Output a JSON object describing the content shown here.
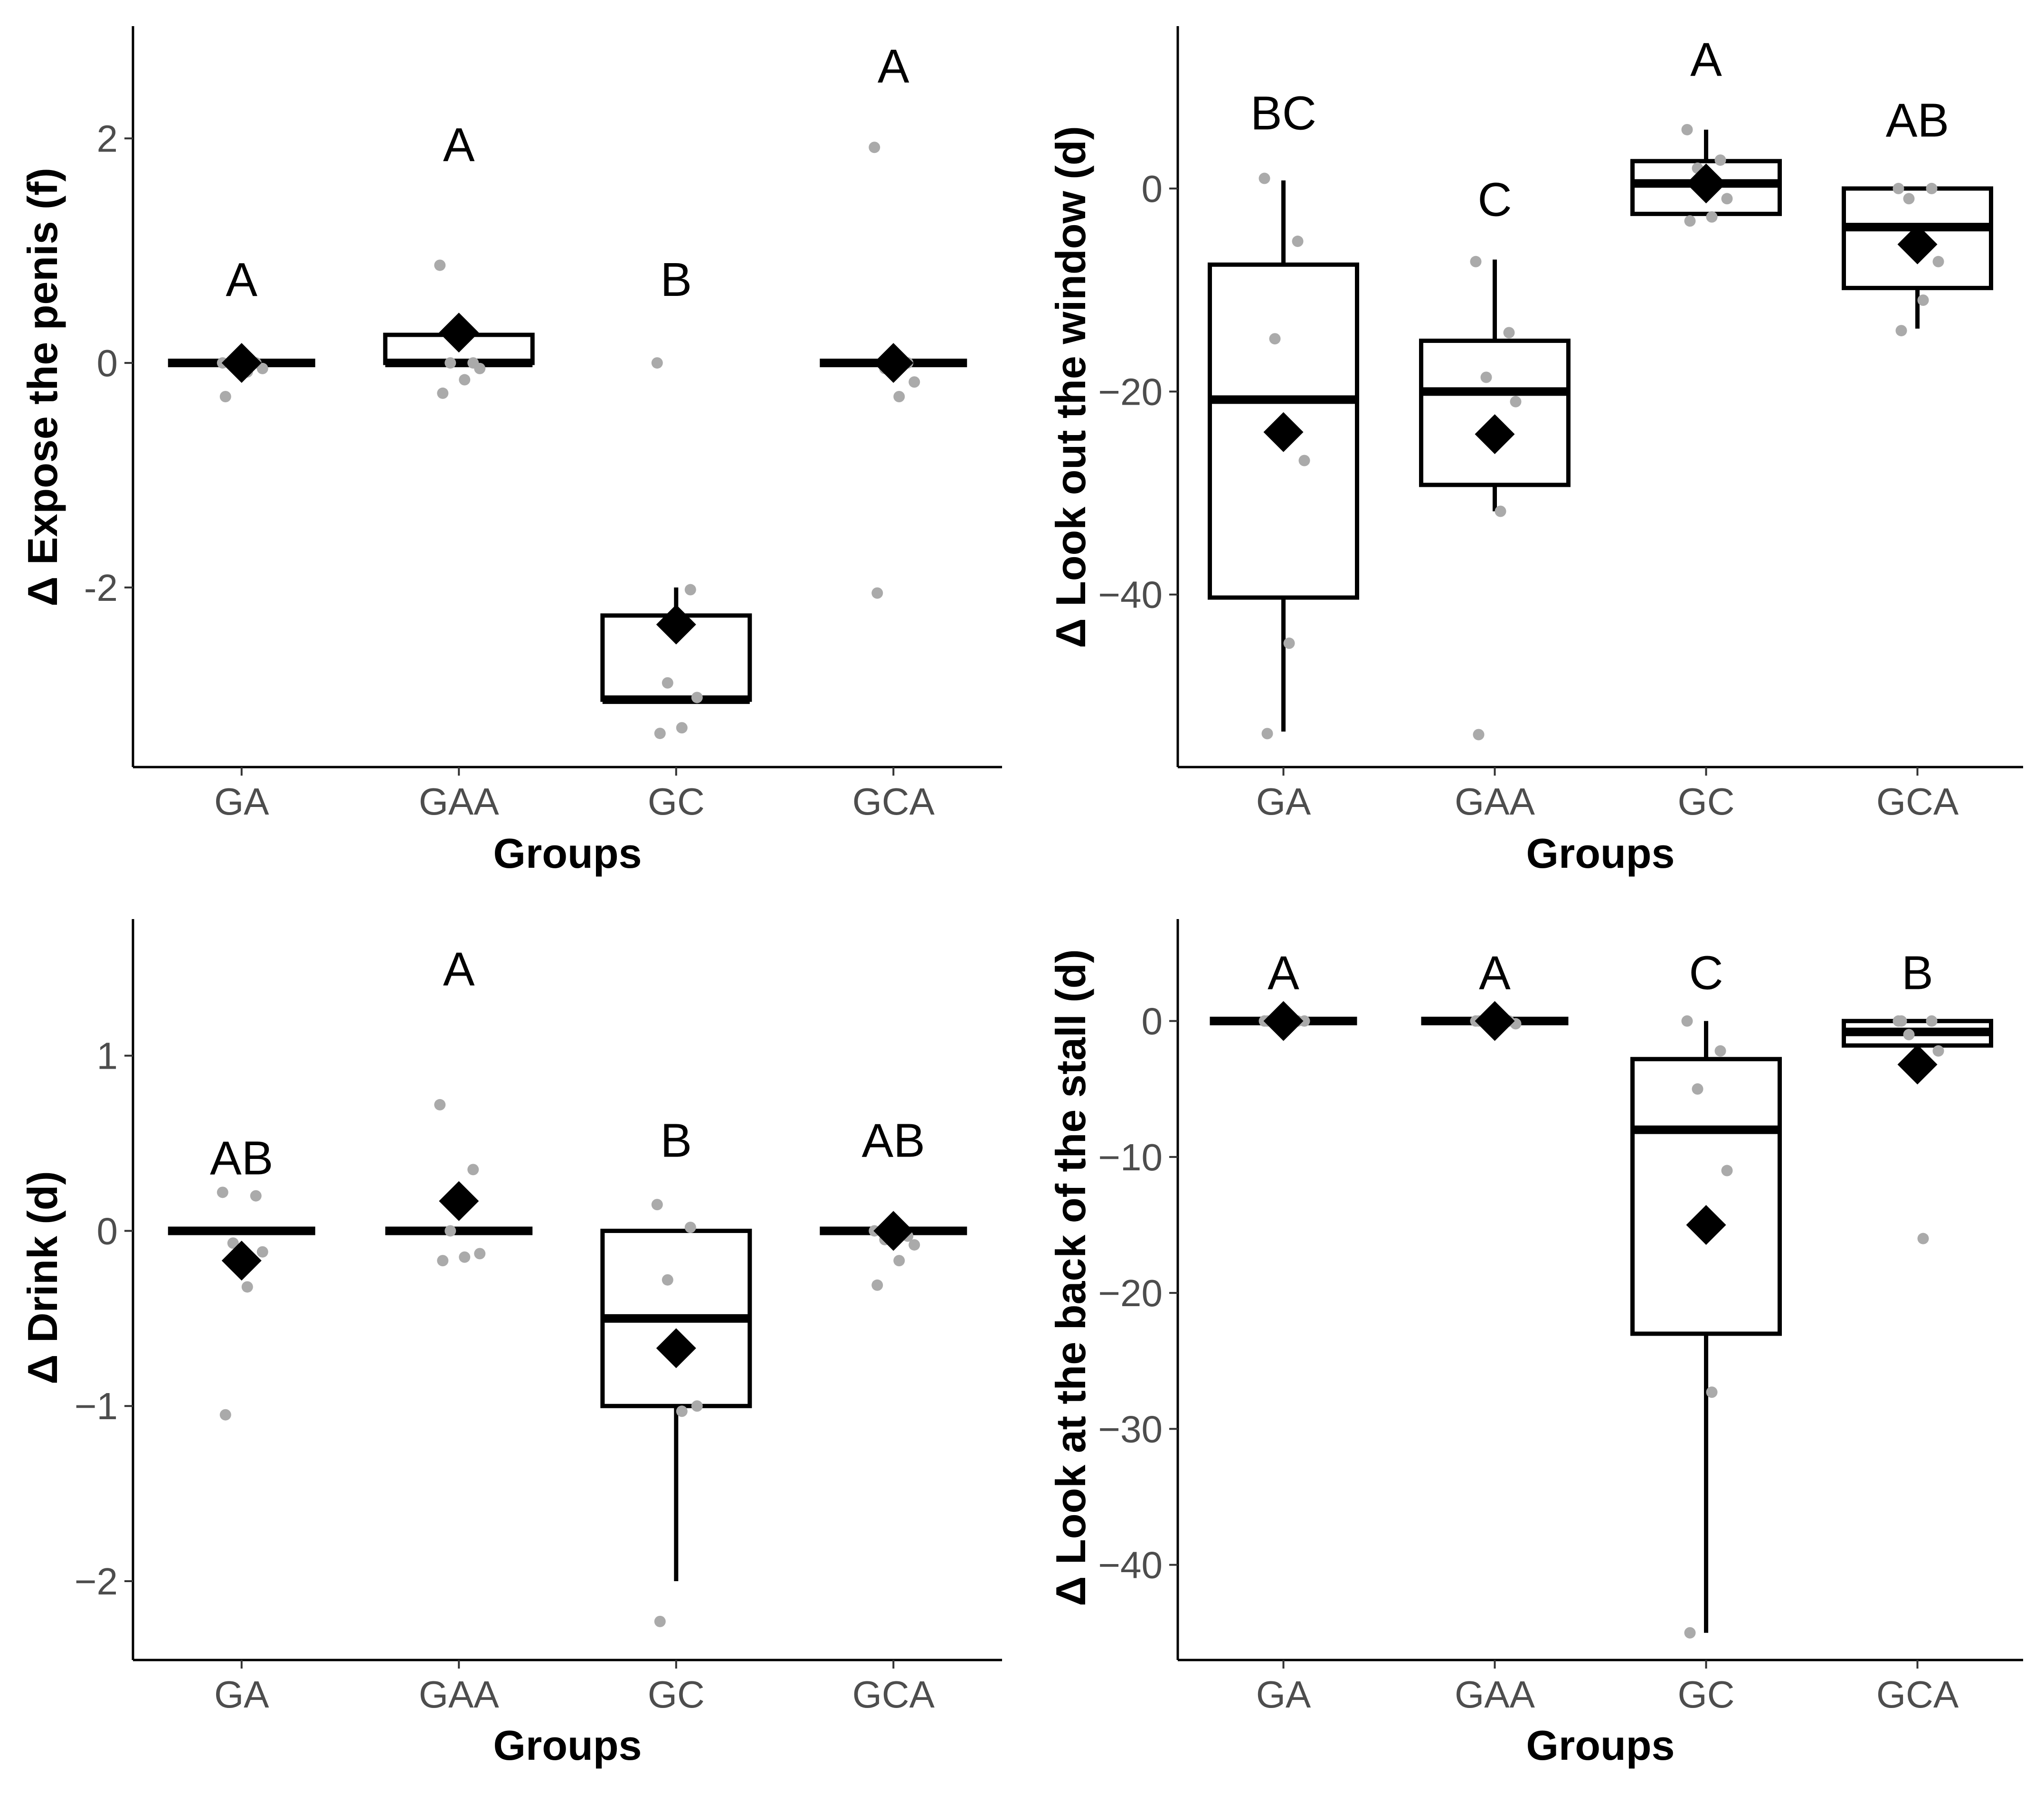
{
  "colors": {
    "box_stroke": "#000000",
    "point": "#aaaaaa",
    "mean": "#000000",
    "tick_text": "#4d4d4d",
    "background": "#ffffff"
  },
  "chart_data": [
    {
      "type": "boxplot",
      "ylabel": "Δ Expose the penis (f)",
      "xlabel": "Groups",
      "categories": [
        "GA",
        "GAA",
        "GC",
        "GCA"
      ],
      "ylim": [
        -3.6,
        3.0
      ],
      "yticks": [
        {
          "v": 2,
          "label": "2"
        },
        {
          "v": 0,
          "label": "0"
        },
        {
          "v": -2,
          "label": "-2"
        }
      ],
      "groups": [
        {
          "name": "GA",
          "q1": 0,
          "median": 0,
          "q3": 0,
          "wlow": 0,
          "whigh": 0,
          "mean": 0,
          "letter": "A",
          "letter_y": 0.75,
          "points": [
            0,
            0,
            0,
            -0.05,
            -0.08,
            -0.3
          ]
        },
        {
          "name": "GAA",
          "q1": 0,
          "median": 0,
          "q3": 0.25,
          "wlow": 0,
          "whigh": 0.25,
          "mean": 0.27,
          "letter": "A",
          "letter_y": 1.95,
          "points": [
            0.87,
            0,
            0,
            -0.05,
            -0.15,
            -0.27
          ]
        },
        {
          "name": "GC",
          "q1": -3.0,
          "median": -3.0,
          "q3": -2.25,
          "wlow": -3.0,
          "whigh": -2.0,
          "mean": -2.33,
          "letter": "B",
          "letter_y": 0.75,
          "points": [
            0,
            -2.02,
            -2.85,
            -2.98,
            -3.25,
            -3.3
          ]
        },
        {
          "name": "GCA",
          "q1": 0,
          "median": 0,
          "q3": 0,
          "wlow": 0,
          "whigh": 0,
          "mean": 0,
          "letter": "A",
          "letter_y": 2.65,
          "points": [
            1.92,
            0,
            -0.05,
            -0.17,
            -0.3,
            -2.05
          ]
        }
      ]
    },
    {
      "type": "boxplot",
      "ylabel": "Δ Look out the window (d)",
      "xlabel": "Groups",
      "categories": [
        "GA",
        "GAA",
        "GC",
        "GCA"
      ],
      "ylim": [
        -57,
        16
      ],
      "yticks": [
        {
          "v": 0,
          "label": "0"
        },
        {
          "v": -20,
          "label": "−20"
        },
        {
          "v": -40,
          "label": "−40"
        }
      ],
      "groups": [
        {
          "name": "GA",
          "q1": -40.3,
          "median": -20.8,
          "q3": -7.5,
          "wlow": -53.5,
          "whigh": 0.8,
          "mean": -24.0,
          "letter": "BC",
          "letter_y": 7.5,
          "points": [
            1.0,
            -5.2,
            -14.8,
            -26.8,
            -44.8,
            -53.7
          ]
        },
        {
          "name": "GAA",
          "q1": -29.2,
          "median": -20.0,
          "q3": -15.0,
          "wlow": -31.8,
          "whigh": -7.0,
          "mean": -24.2,
          "letter": "C",
          "letter_y": -1.0,
          "points": [
            -7.2,
            -14.2,
            -18.6,
            -21.0,
            -31.8,
            -53.8
          ]
        },
        {
          "name": "GC",
          "q1": -2.5,
          "median": 0.5,
          "q3": 2.7,
          "wlow": -2.5,
          "whigh": 5.8,
          "mean": 0.5,
          "letter": "A",
          "letter_y": 12.8,
          "points": [
            5.8,
            2.8,
            2.0,
            -1.0,
            -2.8,
            -3.2
          ]
        },
        {
          "name": "GCA",
          "q1": -9.8,
          "median": -3.8,
          "q3": 0,
          "wlow": -13.8,
          "whigh": 0,
          "mean": -5.5,
          "letter": "AB",
          "letter_y": 6.8,
          "points": [
            0,
            0,
            -1.0,
            -7.2,
            -11.0,
            -14.0
          ]
        }
      ]
    },
    {
      "type": "boxplot",
      "ylabel": "Δ Drink (d)",
      "xlabel": "Groups",
      "categories": [
        "GA",
        "GAA",
        "GC",
        "GCA"
      ],
      "ylim": [
        -2.45,
        1.78
      ],
      "yticks": [
        {
          "v": 1,
          "label": "1"
        },
        {
          "v": 0,
          "label": "0"
        },
        {
          "v": -1,
          "label": "−1"
        },
        {
          "v": -2,
          "label": "−2"
        }
      ],
      "groups": [
        {
          "name": "GA",
          "q1": 0,
          "median": 0,
          "q3": 0,
          "wlow": 0,
          "whigh": 0,
          "mean": -0.17,
          "letter": "AB",
          "letter_y": 0.42,
          "points": [
            0.22,
            0.2,
            -0.07,
            -0.12,
            -0.32,
            -1.05
          ]
        },
        {
          "name": "GAA",
          "q1": 0,
          "median": 0,
          "q3": 0,
          "wlow": 0,
          "whigh": 0,
          "mean": 0.17,
          "letter": "A",
          "letter_y": 1.5,
          "points": [
            0.72,
            0.35,
            0,
            -0.13,
            -0.15,
            -0.17
          ]
        },
        {
          "name": "GC",
          "q1": -1.0,
          "median": -0.5,
          "q3": 0,
          "wlow": -2.0,
          "whigh": 0,
          "mean": -0.67,
          "letter": "B",
          "letter_y": 0.52,
          "points": [
            0.15,
            0.02,
            -0.28,
            -1.0,
            -1.03,
            -2.23
          ]
        },
        {
          "name": "GCA",
          "q1": 0,
          "median": 0,
          "q3": 0,
          "wlow": 0,
          "whigh": 0,
          "mean": 0,
          "letter": "AB",
          "letter_y": 0.52,
          "points": [
            0,
            -0.03,
            -0.05,
            -0.08,
            -0.17,
            -0.31
          ]
        }
      ]
    },
    {
      "type": "boxplot",
      "ylabel": "Δ Look at the back of the stall (d)",
      "xlabel": "Groups",
      "categories": [
        "GA",
        "GAA",
        "GC",
        "GCA"
      ],
      "ylim": [
        -47,
        7.5
      ],
      "yticks": [
        {
          "v": 0,
          "label": "0"
        },
        {
          "v": -10,
          "label": "−10"
        },
        {
          "v": -20,
          "label": "−20"
        },
        {
          "v": -30,
          "label": "−30"
        },
        {
          "v": -40,
          "label": "−40"
        }
      ],
      "groups": [
        {
          "name": "GA",
          "q1": 0,
          "median": 0,
          "q3": 0,
          "wlow": 0,
          "whigh": 0,
          "mean": 0,
          "letter": "A",
          "letter_y": 3.6,
          "points": [
            0,
            0,
            0,
            0,
            0,
            0
          ]
        },
        {
          "name": "GAA",
          "q1": 0,
          "median": 0,
          "q3": 0,
          "wlow": 0,
          "whigh": 0,
          "mean": 0,
          "letter": "A",
          "letter_y": 3.6,
          "points": [
            0,
            0,
            0,
            -0.2,
            -0.2,
            0
          ]
        },
        {
          "name": "GC",
          "q1": -23.0,
          "median": -8.0,
          "q3": -2.8,
          "wlow": -45.0,
          "whigh": 0,
          "mean": -15.0,
          "letter": "C",
          "letter_y": 3.6,
          "points": [
            0,
            -2.2,
            -5.0,
            -11.0,
            -27.3,
            -45.0
          ]
        },
        {
          "name": "GCA",
          "q1": -1.8,
          "median": -0.8,
          "q3": 0,
          "wlow": -1.8,
          "whigh": 0,
          "mean": -3.2,
          "letter": "B",
          "letter_y": 3.6,
          "points": [
            0,
            0,
            -1.0,
            -2.2,
            -16.0,
            0
          ]
        }
      ]
    }
  ]
}
